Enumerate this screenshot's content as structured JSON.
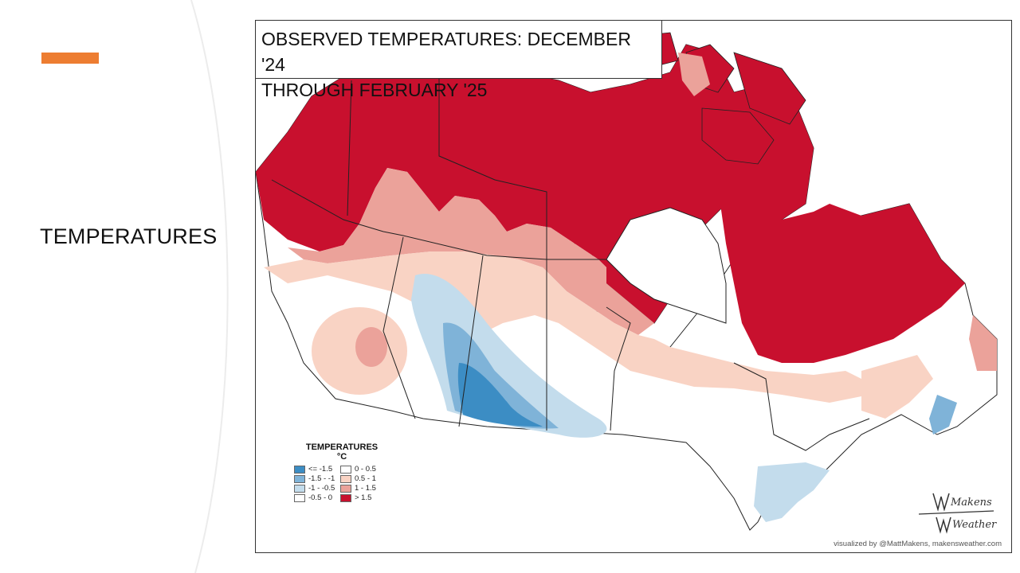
{
  "slide": {
    "section_title": "TEMPERATURES",
    "accent_color": "#ED7D31"
  },
  "map": {
    "title_line1": "OBSERVED TEMPERATURES: DECEMBER '24",
    "title_line2": "THROUGH FEBRUARY '25",
    "region": "Canada",
    "legend": {
      "title": "TEMPERATURES",
      "unit": "°C",
      "items": [
        {
          "label": "<= -1.5",
          "color": "#3C8DC4"
        },
        {
          "label": "0 - 0.5",
          "color": "#FFFFFF"
        },
        {
          "label": "-1.5 - -1",
          "color": "#7FB3D8"
        },
        {
          "label": "0.5 - 1",
          "color": "#F9D3C4"
        },
        {
          "label": "-1 - -0.5",
          "color": "#C3DCEC"
        },
        {
          "label": "1 - 1.5",
          "color": "#EBA29A"
        },
        {
          "label": "-0.5 - 0",
          "color": "#FFFFFF"
        },
        {
          "label": "> 1.5",
          "color": "#C8102E"
        }
      ]
    },
    "logo_top": "Makens",
    "logo_bottom": "Weather",
    "credit": "visualized by @MattMakens, makensweather.com"
  }
}
